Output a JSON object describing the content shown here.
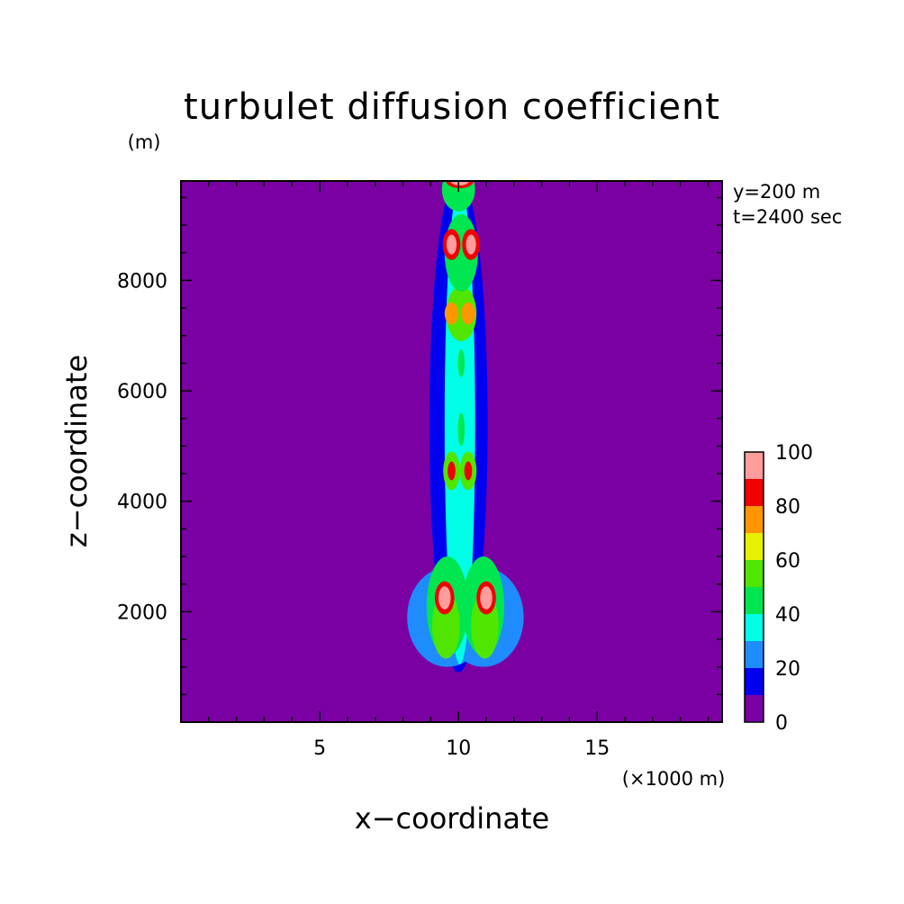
{
  "chart_data": {
    "type": "heatmap",
    "title": "turbulet diffusion coefficient",
    "xlabel": "x−coordinate",
    "ylabel": "z−coordinate",
    "x_unit": "(×1000 m)",
    "y_unit": "(m)",
    "annotations": [
      "y=200 m",
      "t=2400 sec"
    ],
    "xlim": [
      0,
      19.5
    ],
    "ylim": [
      0,
      9800
    ],
    "x_ticks": [
      5,
      10,
      15
    ],
    "x_tick_labels": [
      "5",
      "10",
      "15"
    ],
    "y_ticks": [
      2000,
      4000,
      6000,
      8000
    ],
    "y_tick_labels": [
      "2000",
      "4000",
      "6000",
      "8000"
    ],
    "colorbar": {
      "levels": [
        0,
        10,
        20,
        30,
        40,
        50,
        60,
        70,
        80,
        90,
        100
      ],
      "labels": [
        "0",
        "20",
        "40",
        "60",
        "80",
        "100"
      ],
      "label_values": [
        0,
        20,
        40,
        60,
        80,
        100
      ],
      "colors": [
        "#7b00a3",
        "#0000f0",
        "#1e8cff",
        "#00ffe6",
        "#00e650",
        "#50e600",
        "#e6f000",
        "#ff9600",
        "#f00000",
        "#ff9c9c"
      ]
    },
    "features": [
      {
        "cx": 10.0,
        "cz": 5400,
        "rx": 1.05,
        "rz": 4500,
        "value": 15
      },
      {
        "cx": 9.6,
        "cz": 1900,
        "rx": 1.45,
        "rz": 900,
        "value": 25
      },
      {
        "cx": 10.9,
        "cz": 1900,
        "rx": 1.45,
        "rz": 900,
        "value": 25
      },
      {
        "cx": 10.05,
        "cz": 5400,
        "rx": 0.55,
        "rz": 4350,
        "value": 35
      },
      {
        "cx": 9.6,
        "cz": 2100,
        "rx": 0.75,
        "rz": 900,
        "value": 45
      },
      {
        "cx": 10.9,
        "cz": 2100,
        "rx": 0.75,
        "rz": 900,
        "value": 45
      },
      {
        "cx": 9.55,
        "cz": 1750,
        "rx": 0.5,
        "rz": 600,
        "value": 55
      },
      {
        "cx": 10.95,
        "cz": 1750,
        "rx": 0.5,
        "rz": 600,
        "value": 55
      },
      {
        "cx": 9.5,
        "cz": 2250,
        "rx": 0.35,
        "rz": 300,
        "value": 85
      },
      {
        "cx": 11.0,
        "cz": 2250,
        "rx": 0.35,
        "rz": 300,
        "value": 85
      },
      {
        "cx": 9.5,
        "cz": 2250,
        "rx": 0.22,
        "rz": 210,
        "value": 95
      },
      {
        "cx": 11.0,
        "cz": 2250,
        "rx": 0.22,
        "rz": 210,
        "value": 95
      },
      {
        "cx": 9.75,
        "cz": 4550,
        "rx": 0.3,
        "rz": 350,
        "value": 55
      },
      {
        "cx": 10.35,
        "cz": 4550,
        "rx": 0.3,
        "rz": 350,
        "value": 55
      },
      {
        "cx": 9.75,
        "cz": 4550,
        "rx": 0.14,
        "rz": 170,
        "value": 85
      },
      {
        "cx": 10.35,
        "cz": 4550,
        "rx": 0.14,
        "rz": 170,
        "value": 85
      },
      {
        "cx": 10.1,
        "cz": 5300,
        "rx": 0.12,
        "rz": 300,
        "value": 45
      },
      {
        "cx": 10.1,
        "cz": 6500,
        "rx": 0.12,
        "rz": 250,
        "value": 45
      },
      {
        "cx": 10.1,
        "cz": 7400,
        "rx": 0.55,
        "rz": 500,
        "value": 55
      },
      {
        "cx": 9.75,
        "cz": 7400,
        "rx": 0.25,
        "rz": 200,
        "value": 75
      },
      {
        "cx": 10.35,
        "cz": 7400,
        "rx": 0.25,
        "rz": 200,
        "value": 75
      },
      {
        "cx": 10.1,
        "cz": 8100,
        "rx": 0.15,
        "rz": 200,
        "value": 85
      },
      {
        "cx": 10.1,
        "cz": 8500,
        "rx": 0.6,
        "rz": 700,
        "value": 45
      },
      {
        "cx": 9.75,
        "cz": 8650,
        "rx": 0.32,
        "rz": 280,
        "value": 85
      },
      {
        "cx": 10.45,
        "cz": 8650,
        "rx": 0.32,
        "rz": 280,
        "value": 85
      },
      {
        "cx": 9.75,
        "cz": 8650,
        "rx": 0.18,
        "rz": 180,
        "value": 95
      },
      {
        "cx": 10.45,
        "cz": 8650,
        "rx": 0.18,
        "rz": 180,
        "value": 95
      },
      {
        "cx": 10.0,
        "cz": 9650,
        "rx": 0.6,
        "rz": 400,
        "value": 45
      },
      {
        "cx": 10.05,
        "cz": 9800,
        "rx": 0.5,
        "rz": 130,
        "value": 85
      },
      {
        "cx": 10.05,
        "cz": 9800,
        "rx": 0.33,
        "rz": 80,
        "value": 95
      }
    ]
  }
}
